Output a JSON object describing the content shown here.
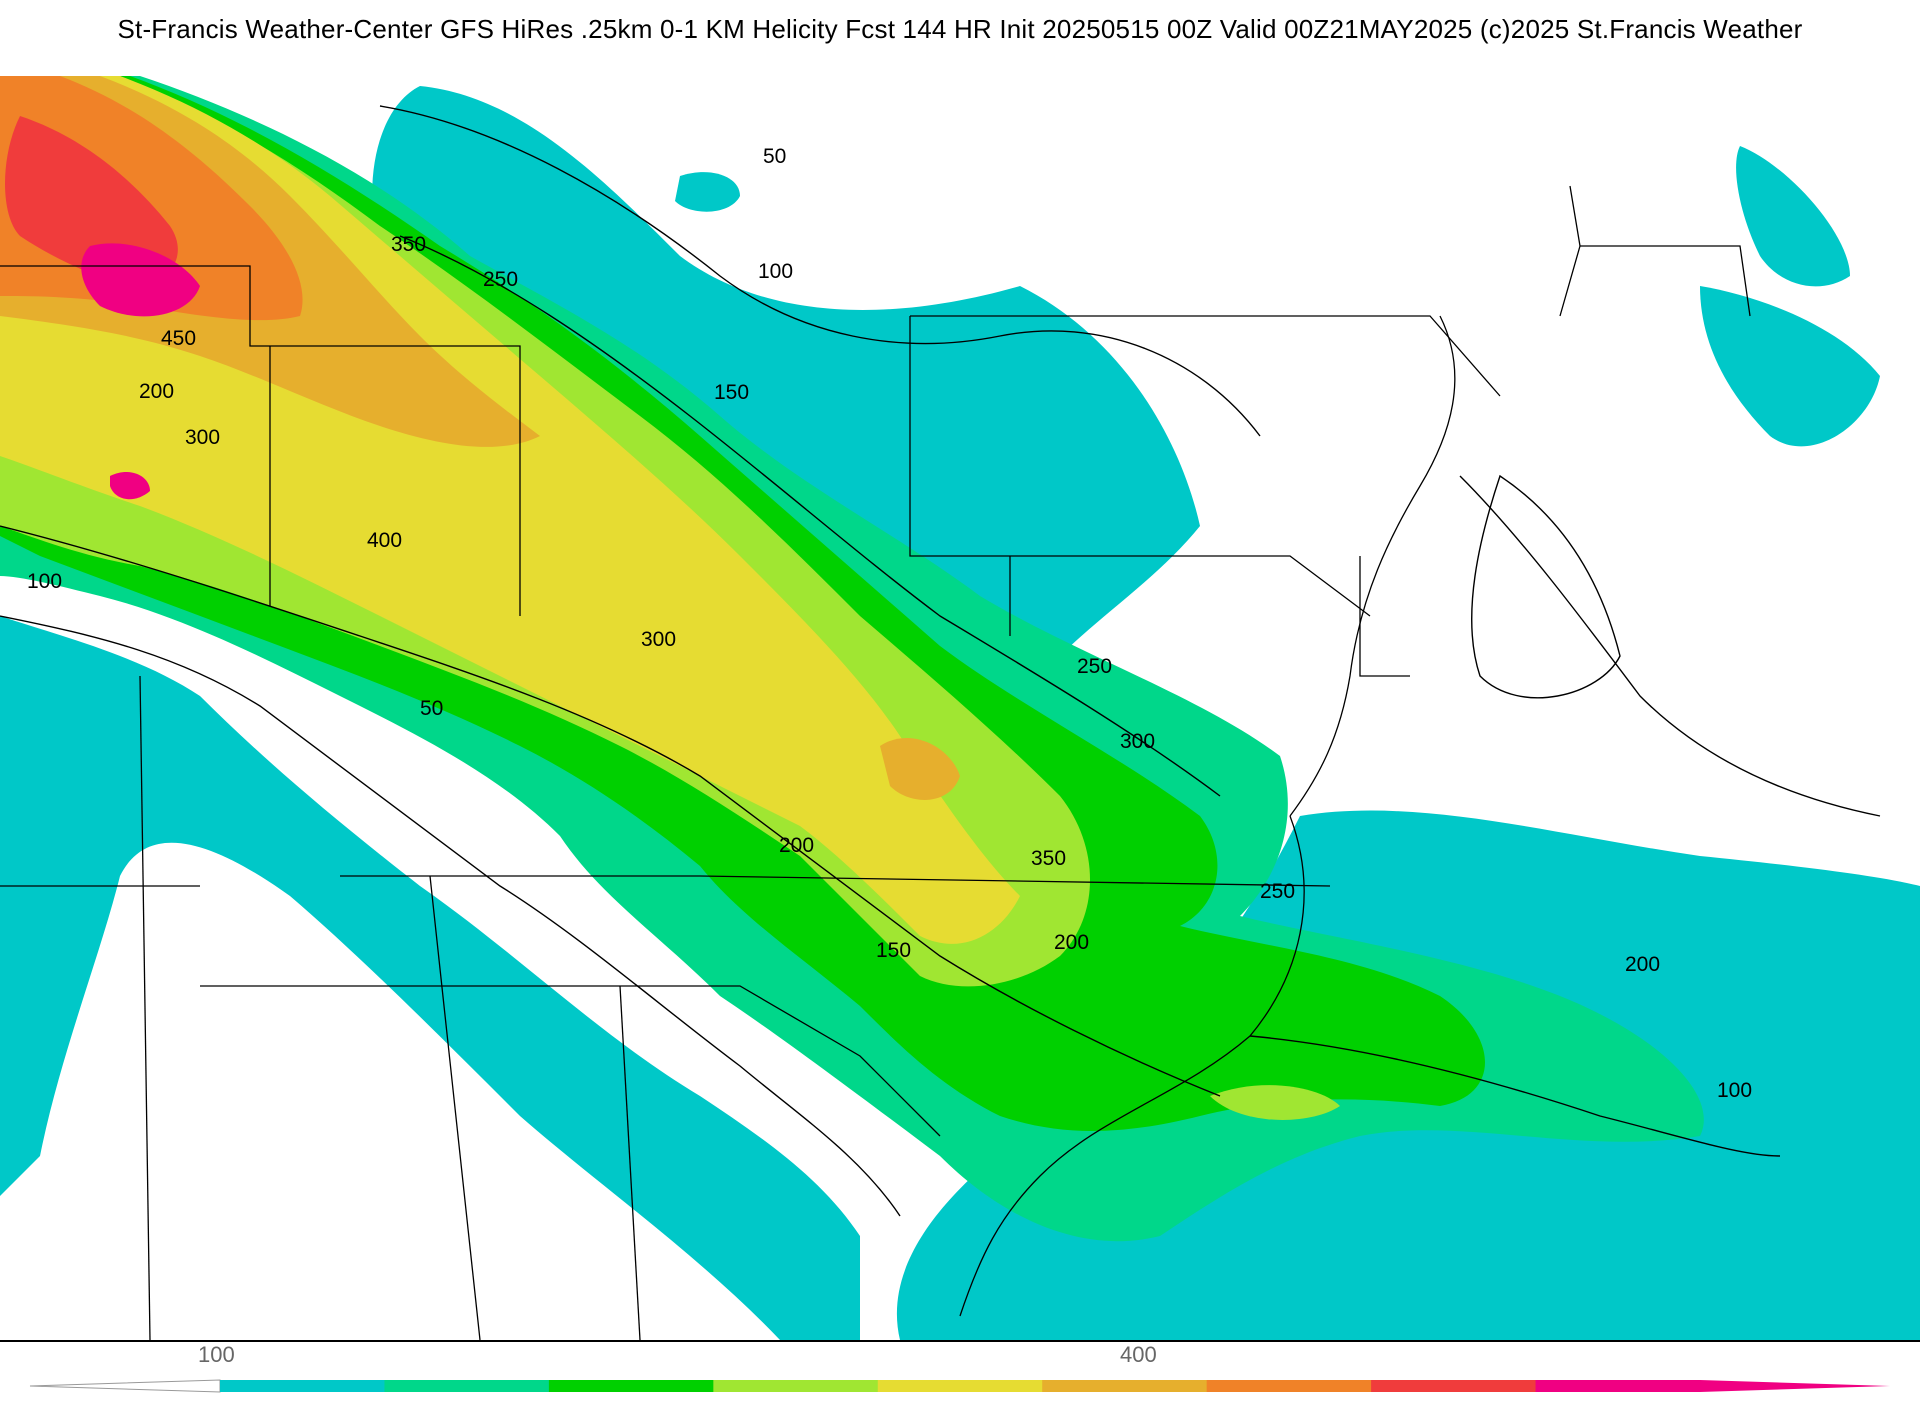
{
  "title": "St-Francis Weather-Center GFS HiRes .25km 0-1 KM Helicity Fcst 144 HR Init 20250515 00Z  Valid 00Z21MAY2025    (c)2025 St.Francis Weather",
  "contour_labels": [
    "50",
    "100",
    "150",
    "200",
    "250",
    "300",
    "350",
    "400",
    "450"
  ],
  "colorbar": {
    "tick_labels": [
      "100",
      "400"
    ],
    "colors": [
      "#00c8c8",
      "#00d78a",
      "#00d000",
      "#a0e632",
      "#e6dc32",
      "#e6af2d",
      "#f08228",
      "#f03c3c",
      "#f00082"
    ]
  }
}
